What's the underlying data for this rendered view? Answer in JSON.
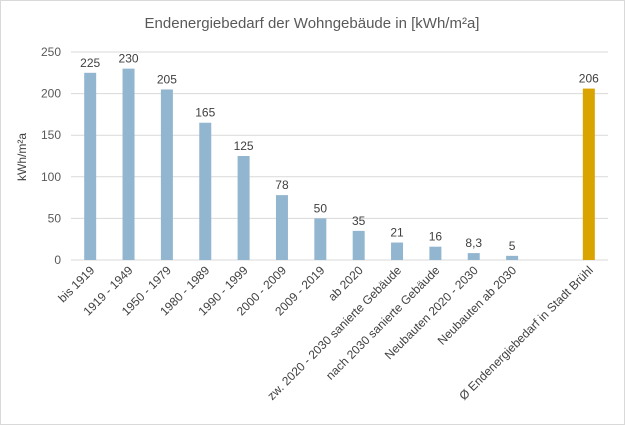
{
  "chart_data": {
    "type": "bar",
    "title": "Endenergiebedarf der Wohngebäude in [kWh/m²a]",
    "xlabel": "",
    "ylabel": "kWh/m²a",
    "ylim": [
      0,
      250
    ],
    "yticks": [
      "0",
      "50",
      "100",
      "150",
      "200",
      "250"
    ],
    "grid": true,
    "categories": [
      "bis 1919",
      "1919 - 1949",
      "1950 - 1979",
      "1980 - 1989",
      "1990 - 1999",
      "2000 - 2009",
      "2009 - 2019",
      "ab 2020",
      "zw. 2020 - 2030 sanierte Gebäude",
      "nach 2030 sanierte Gebäude",
      "Neubauten 2020 - 2030",
      "Neubauten ab 2030",
      "",
      "Ø Endenergiebedarf in Stadt Brühl"
    ],
    "values": [
      225,
      230,
      205,
      165,
      125,
      78,
      50,
      35,
      21,
      16,
      8.3,
      5,
      null,
      206
    ],
    "value_labels": [
      "225",
      "230",
      "205",
      "165",
      "125",
      "78",
      "50",
      "35",
      "21",
      "16",
      "8,3",
      "5",
      "",
      "206"
    ],
    "bar_colors": [
      "#93b6d0",
      "#93b6d0",
      "#93b6d0",
      "#93b6d0",
      "#93b6d0",
      "#93b6d0",
      "#93b6d0",
      "#93b6d0",
      "#93b6d0",
      "#93b6d0",
      "#93b6d0",
      "#93b6d0",
      "#93b6d0",
      "#d9a300"
    ]
  }
}
